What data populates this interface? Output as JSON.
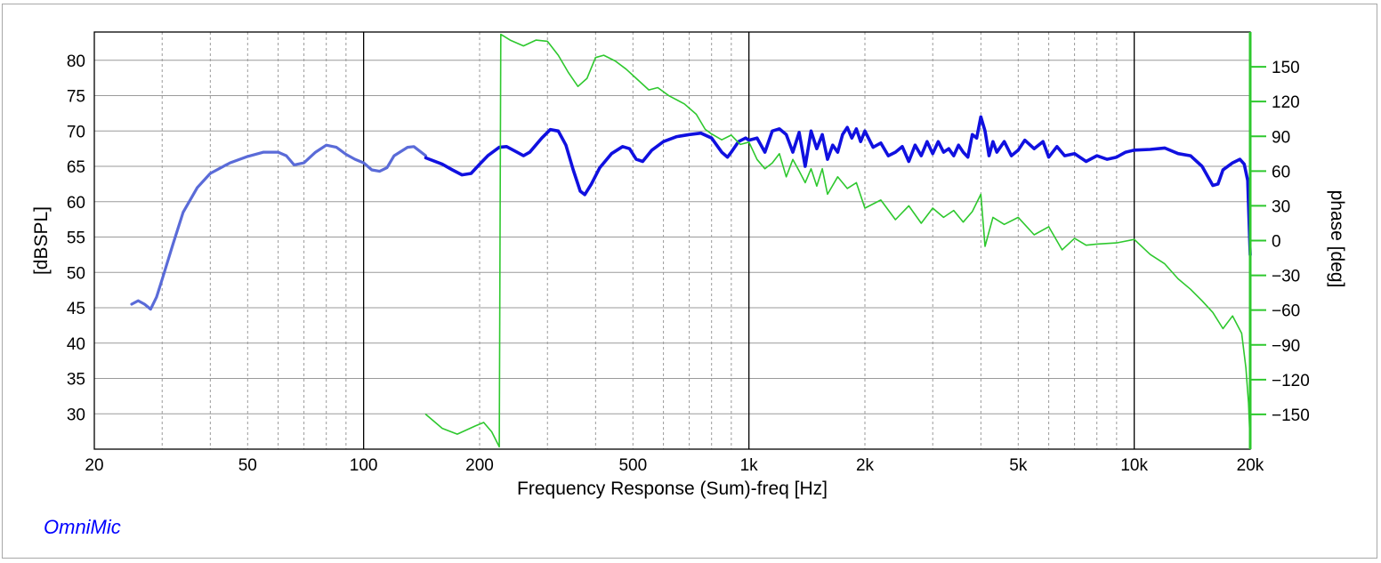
{
  "chart_data": {
    "type": "line",
    "xlabel": "Frequency Response (Sum)-freq [Hz]",
    "ylabel_left": "[dBSPL]",
    "ylabel_right": "phase [deg]",
    "x_scale": "log",
    "xlim": [
      20,
      20000
    ],
    "ylim": [
      25,
      84
    ],
    "y2lim": [
      -180,
      180
    ],
    "x_ticks": [
      20,
      50,
      100,
      200,
      500,
      1000,
      2000,
      5000,
      10000,
      20000
    ],
    "x_tick_labels": [
      "20",
      "50",
      "100",
      "200",
      "500",
      "1k",
      "2k",
      "5k",
      "10k",
      "20k"
    ],
    "y_ticks": [
      30,
      35,
      40,
      45,
      50,
      55,
      60,
      65,
      70,
      75,
      80
    ],
    "y_tick_labels": [
      "30",
      "35",
      "40",
      "45",
      "50",
      "55",
      "60",
      "65",
      "70",
      "75",
      "80"
    ],
    "y2_ticks": [
      -150,
      -120,
      -90,
      -60,
      -30,
      0,
      30,
      60,
      90,
      120,
      150
    ],
    "y2_tick_labels": [
      "−150",
      "−120",
      "−90",
      "−60",
      "−30",
      "0",
      "30",
      "60",
      "90",
      "120",
      "150"
    ],
    "grid": true,
    "series": [
      {
        "axis": "left",
        "color": "#5a6bd8",
        "points": [
          [
            25,
            45.5
          ],
          [
            26,
            46
          ],
          [
            27,
            45.5
          ],
          [
            28,
            44.8
          ],
          [
            29,
            46.5
          ],
          [
            30,
            49
          ],
          [
            32,
            54
          ],
          [
            34,
            58.5
          ],
          [
            37,
            62
          ],
          [
            40,
            64
          ],
          [
            45,
            65.5
          ],
          [
            50,
            66.4
          ],
          [
            55,
            67
          ],
          [
            60,
            67
          ],
          [
            63,
            66.5
          ],
          [
            66,
            65.2
          ],
          [
            70,
            65.5
          ],
          [
            75,
            67
          ],
          [
            80,
            68
          ],
          [
            85,
            67.7
          ],
          [
            90,
            66.7
          ],
          [
            95,
            66
          ],
          [
            100,
            65.5
          ],
          [
            105,
            64.5
          ],
          [
            110,
            64.3
          ],
          [
            115,
            64.8
          ],
          [
            120,
            66.5
          ],
          [
            130,
            67.7
          ],
          [
            135,
            67.8
          ],
          [
            145,
            66.5
          ]
        ]
      },
      {
        "axis": "left",
        "color": "#1010e0",
        "points": [
          [
            145,
            66.2
          ],
          [
            160,
            65.3
          ],
          [
            170,
            64.5
          ],
          [
            180,
            63.8
          ],
          [
            190,
            64
          ],
          [
            200,
            65.3
          ],
          [
            210,
            66.5
          ],
          [
            225,
            67.7
          ],
          [
            235,
            67.8
          ],
          [
            250,
            67
          ],
          [
            260,
            66.5
          ],
          [
            270,
            67
          ],
          [
            290,
            69
          ],
          [
            305,
            70.2
          ],
          [
            320,
            70
          ],
          [
            335,
            68
          ],
          [
            350,
            64.5
          ],
          [
            365,
            61.5
          ],
          [
            375,
            61
          ],
          [
            390,
            62.5
          ],
          [
            410,
            64.8
          ],
          [
            440,
            66.8
          ],
          [
            470,
            67.8
          ],
          [
            490,
            67.5
          ],
          [
            510,
            66
          ],
          [
            530,
            65.7
          ],
          [
            560,
            67.3
          ],
          [
            600,
            68.5
          ],
          [
            650,
            69.2
          ],
          [
            700,
            69.5
          ],
          [
            750,
            69.7
          ],
          [
            800,
            69
          ],
          [
            850,
            67
          ],
          [
            880,
            66.3
          ],
          [
            900,
            67
          ],
          [
            940,
            68.5
          ],
          [
            980,
            69
          ],
          [
            1000,
            68.7
          ],
          [
            1050,
            69
          ],
          [
            1100,
            67
          ],
          [
            1150,
            70
          ],
          [
            1200,
            70.3
          ],
          [
            1250,
            69.5
          ],
          [
            1300,
            67
          ],
          [
            1350,
            69.8
          ],
          [
            1400,
            65
          ],
          [
            1450,
            70
          ],
          [
            1500,
            67.5
          ],
          [
            1550,
            69.5
          ],
          [
            1600,
            66
          ],
          [
            1650,
            68
          ],
          [
            1700,
            67
          ],
          [
            1750,
            69.5
          ],
          [
            1800,
            70.5
          ],
          [
            1850,
            69
          ],
          [
            1900,
            70.3
          ],
          [
            1950,
            68.5
          ],
          [
            2000,
            70
          ],
          [
            2100,
            67.7
          ],
          [
            2200,
            68.3
          ],
          [
            2300,
            66.5
          ],
          [
            2400,
            67
          ],
          [
            2500,
            67.8
          ],
          [
            2600,
            65.7
          ],
          [
            2700,
            68
          ],
          [
            2800,
            66.5
          ],
          [
            2900,
            68.5
          ],
          [
            3000,
            66.8
          ],
          [
            3100,
            68.5
          ],
          [
            3200,
            67
          ],
          [
            3300,
            67.5
          ],
          [
            3400,
            66.5
          ],
          [
            3500,
            68
          ],
          [
            3600,
            67
          ],
          [
            3700,
            66.3
          ],
          [
            3800,
            69.5
          ],
          [
            3900,
            69
          ],
          [
            4000,
            72
          ],
          [
            4100,
            70
          ],
          [
            4200,
            66.5
          ],
          [
            4300,
            68.5
          ],
          [
            4400,
            67
          ],
          [
            4600,
            68.5
          ],
          [
            4800,
            66.5
          ],
          [
            5000,
            67.3
          ],
          [
            5200,
            68.7
          ],
          [
            5500,
            67.5
          ],
          [
            5800,
            68.5
          ],
          [
            6000,
            66.3
          ],
          [
            6300,
            67.8
          ],
          [
            6600,
            66.5
          ],
          [
            7000,
            66.8
          ],
          [
            7500,
            65.7
          ],
          [
            8000,
            66.5
          ],
          [
            8500,
            66
          ],
          [
            9000,
            66.3
          ],
          [
            9500,
            67
          ],
          [
            10000,
            67.3
          ],
          [
            11000,
            67.4
          ],
          [
            12000,
            67.6
          ],
          [
            13000,
            66.8
          ],
          [
            14000,
            66.5
          ],
          [
            15000,
            65
          ],
          [
            16000,
            62.3
          ],
          [
            16500,
            62.5
          ],
          [
            17000,
            64.5
          ],
          [
            18000,
            65.5
          ],
          [
            18800,
            66
          ],
          [
            19300,
            65.3
          ],
          [
            19700,
            63
          ],
          [
            20000,
            52.5
          ]
        ]
      },
      {
        "axis": "right",
        "color": "#2ec82e",
        "points": [
          [
            145,
            -150
          ],
          [
            160,
            -162
          ],
          [
            175,
            -167
          ],
          [
            195,
            -160
          ],
          [
            205,
            -157
          ],
          [
            215,
            -165
          ],
          [
            225,
            -178
          ],
          [
            227,
            178
          ],
          [
            240,
            173
          ],
          [
            260,
            168
          ],
          [
            280,
            173
          ],
          [
            300,
            172
          ],
          [
            320,
            160
          ],
          [
            340,
            145
          ],
          [
            360,
            133
          ],
          [
            380,
            140
          ],
          [
            400,
            158
          ],
          [
            420,
            160
          ],
          [
            450,
            155
          ],
          [
            480,
            148
          ],
          [
            510,
            140
          ],
          [
            550,
            130
          ],
          [
            580,
            132
          ],
          [
            620,
            125
          ],
          [
            680,
            118
          ],
          [
            730,
            109
          ],
          [
            770,
            96
          ],
          [
            800,
            92
          ],
          [
            850,
            87
          ],
          [
            900,
            91
          ],
          [
            950,
            83
          ],
          [
            1000,
            85
          ],
          [
            1050,
            70
          ],
          [
            1100,
            62
          ],
          [
            1150,
            67
          ],
          [
            1200,
            75
          ],
          [
            1250,
            55
          ],
          [
            1300,
            70
          ],
          [
            1350,
            60
          ],
          [
            1400,
            50
          ],
          [
            1450,
            62
          ],
          [
            1500,
            47
          ],
          [
            1550,
            62
          ],
          [
            1600,
            40
          ],
          [
            1700,
            55
          ],
          [
            1800,
            45
          ],
          [
            1900,
            50
          ],
          [
            2000,
            28
          ],
          [
            2200,
            35
          ],
          [
            2400,
            18
          ],
          [
            2600,
            30
          ],
          [
            2800,
            15
          ],
          [
            3000,
            28
          ],
          [
            3200,
            20
          ],
          [
            3400,
            26
          ],
          [
            3600,
            16
          ],
          [
            3800,
            25
          ],
          [
            4000,
            40
          ],
          [
            4100,
            -5
          ],
          [
            4300,
            20
          ],
          [
            4600,
            14
          ],
          [
            5000,
            20
          ],
          [
            5500,
            5
          ],
          [
            6000,
            12
          ],
          [
            6500,
            -8
          ],
          [
            7000,
            2
          ],
          [
            7500,
            -4
          ],
          [
            8000,
            -3
          ],
          [
            9000,
            -2
          ],
          [
            10000,
            1
          ],
          [
            11000,
            -12
          ],
          [
            12000,
            -20
          ],
          [
            13000,
            -33
          ],
          [
            14000,
            -42
          ],
          [
            15000,
            -52
          ],
          [
            16000,
            -62
          ],
          [
            17000,
            -76
          ],
          [
            18000,
            -65
          ],
          [
            19000,
            -80
          ],
          [
            19500,
            -110
          ],
          [
            19800,
            -140
          ],
          [
            20000,
            -175
          ]
        ]
      }
    ]
  },
  "footer": {
    "brand": "OmniMic",
    "brand_color": "#0000ff"
  }
}
